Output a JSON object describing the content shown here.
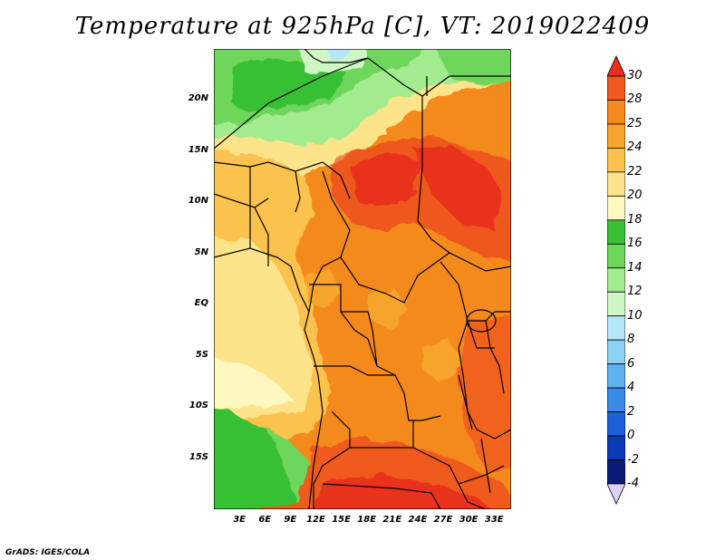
{
  "title": "Temperature at 925hPa [C], VT: 2019022409",
  "credit": "GrADS: IGES/COLA",
  "map": {
    "projection": "lat-lon",
    "lon_range": [
      0,
      35
    ],
    "lat_range": [
      -20,
      25
    ],
    "lat_ticks": [
      {
        "value": 20,
        "label": "20N"
      },
      {
        "value": 15,
        "label": "15N"
      },
      {
        "value": 10,
        "label": "10N"
      },
      {
        "value": 5,
        "label": "5N"
      },
      {
        "value": 0,
        "label": "EQ"
      },
      {
        "value": -5,
        "label": "5S"
      },
      {
        "value": -10,
        "label": "10S"
      },
      {
        "value": -15,
        "label": "15S"
      }
    ],
    "lon_ticks": [
      {
        "value": 3,
        "label": "3E"
      },
      {
        "value": 6,
        "label": "6E"
      },
      {
        "value": 9,
        "label": "9E"
      },
      {
        "value": 12,
        "label": "12E"
      },
      {
        "value": 15,
        "label": "15E"
      },
      {
        "value": 18,
        "label": "18E"
      },
      {
        "value": 21,
        "label": "21E"
      },
      {
        "value": 24,
        "label": "24E"
      },
      {
        "value": 27,
        "label": "27E"
      },
      {
        "value": 30,
        "label": "30E"
      },
      {
        "value": 33,
        "label": "33E"
      }
    ]
  },
  "colorbar": {
    "levels": [
      "30",
      "28",
      "25",
      "24",
      "22",
      "20",
      "18",
      "16",
      "14",
      "12",
      "10",
      "8",
      "6",
      "4",
      "2",
      "0",
      "-2",
      "-4"
    ],
    "colors": [
      "#e8301c",
      "#f05a1e",
      "#f58a1e",
      "#f7a52a",
      "#fbc24e",
      "#fde48a",
      "#fef8c0",
      "#39c036",
      "#6ed65a",
      "#a2eb8e",
      "#cff6c4",
      "#b5e6fa",
      "#8ed1f6",
      "#5fb1f0",
      "#3a8ae6",
      "#1d5fd8",
      "#0c3ab4",
      "#0a1a78",
      "#d8d4f2"
    ]
  }
}
